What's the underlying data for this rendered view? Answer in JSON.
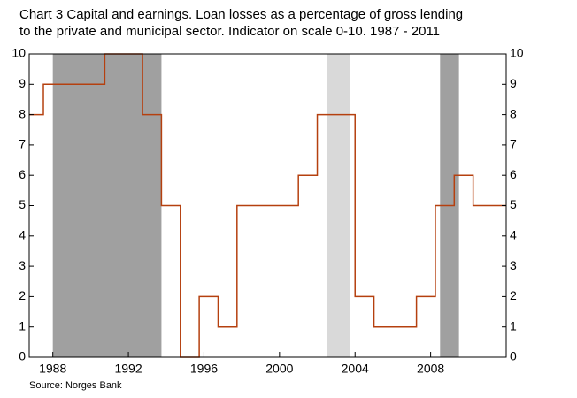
{
  "chart_data": {
    "type": "step",
    "title": [
      "Chart 3 Capital and earnings. Loan losses as a percentage of gross lending",
      "to the private and municipal sector. Indicator on scale 0-10. 1987 - 2011"
    ],
    "source": "Source: Norges Bank",
    "x": [
      1986.75,
      1987.5,
      1990.75,
      1992.75,
      1993.75,
      1994.75,
      1995.75,
      1996.75,
      1997.75,
      2001,
      2002,
      2004,
      2005,
      2007.25,
      2008.25,
      2009.25,
      2010.25,
      2012
    ],
    "values": [
      8,
      9,
      10,
      8,
      5,
      0,
      2,
      1,
      5,
      6,
      8,
      2,
      1,
      2,
      5,
      6,
      5,
      5
    ],
    "color": "#b5400f",
    "shaded_regions": [
      {
        "x": [
          1988,
          1993.75
        ],
        "color": "#a0a0a0"
      },
      {
        "x": [
          2002.5,
          2003.75
        ],
        "color": "#d9d9d9"
      },
      {
        "x": [
          2008.5,
          2009.5
        ],
        "color": "#a0a0a0"
      }
    ],
    "xlim": [
      1986.75,
      2012
    ],
    "xticks": [
      1988,
      1992,
      1996,
      2000,
      2004,
      2008
    ],
    "ylim": [
      0,
      10
    ],
    "yticks": [
      0,
      1,
      2,
      3,
      4,
      5,
      6,
      7,
      8,
      9,
      10
    ],
    "y2lim": [
      0,
      10
    ],
    "y2ticks": [
      0,
      1,
      2,
      3,
      4,
      5,
      6,
      7,
      8,
      9,
      10
    ]
  }
}
